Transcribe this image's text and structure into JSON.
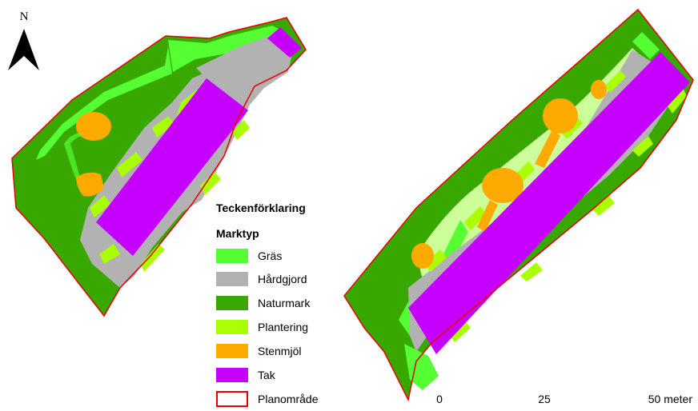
{
  "north_arrow": {
    "label": "N",
    "icon": "north-arrow-icon"
  },
  "legend": {
    "title": "Teckenförklaring",
    "subtitle": "Marktyp",
    "items": [
      {
        "label": "Gräs",
        "color": "#55ff33"
      },
      {
        "label": "Hårdgjord",
        "color": "#b2b2b2"
      },
      {
        "label": "Naturmark",
        "color": "#38a800"
      },
      {
        "label": "Plantering",
        "color": "#aaff00"
      },
      {
        "label": "Stenmjöl",
        "color": "#ffaa00"
      },
      {
        "label": "Tak",
        "color": "#c500ff"
      },
      {
        "label": "Planområde",
        "color": "#e60000",
        "style": "outline"
      }
    ]
  },
  "scale_bar": {
    "labels": [
      "0",
      "25",
      "50 meter"
    ]
  },
  "colors": {
    "gras": "#55ff33",
    "hardgjord": "#b2b2b2",
    "naturmark": "#38a800",
    "plantering": "#aaff00",
    "stenmjol": "#ffaa00",
    "tak": "#c500ff",
    "planomrade": "#e60000",
    "light_green": "#ccff99"
  }
}
